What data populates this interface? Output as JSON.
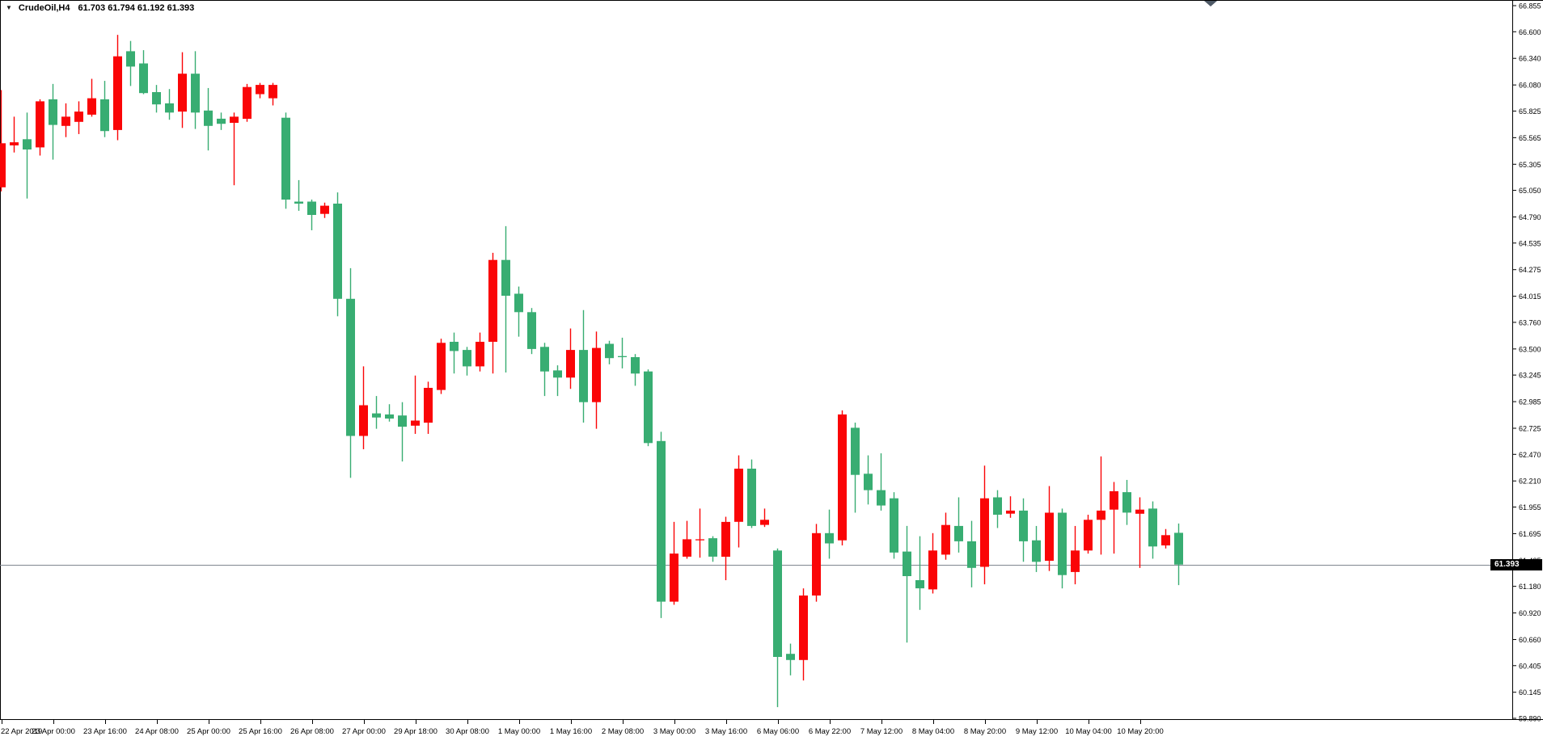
{
  "window": {
    "menu_triangle_glyph": "▼",
    "title_symbol": "CrudeOil,H4",
    "title_ohlc": "61.703 61.794 61.192 61.393"
  },
  "chart_data": {
    "type": "candlestick",
    "title": "CrudeOil,H4",
    "symbol": "CrudeOil",
    "timeframe": "H4",
    "legend_position": "none",
    "grid": false,
    "colors": {
      "bull": "#fa0507",
      "bear": "#38ad72",
      "price_line": "#7f8790",
      "axis": "#000000",
      "tag_bg": "#000000",
      "tag_text": "#ffffff"
    },
    "current_bar": {
      "open": 61.703,
      "high": 61.794,
      "low": 61.192,
      "close": 61.393
    },
    "price_line": 61.393,
    "price_tag_text": "61.393",
    "ylim": [
      59.89,
      66.855
    ],
    "price_axis": {
      "labels": [
        "66.855",
        "66.600",
        "66.340",
        "66.080",
        "65.825",
        "65.565",
        "65.305",
        "65.050",
        "64.790",
        "64.535",
        "64.275",
        "64.015",
        "63.760",
        "63.500",
        "63.245",
        "62.985",
        "62.725",
        "62.470",
        "62.210",
        "61.955",
        "61.695",
        "61.435",
        "61.180",
        "60.920",
        "60.660",
        "60.405",
        "60.145",
        "59.890"
      ]
    },
    "time_axis": {
      "labels": [
        "22 Apr 2019",
        "23 Apr 00:00",
        "23 Apr 16:00",
        "24 Apr 08:00",
        "25 Apr 00:00",
        "25 Apr 16:00",
        "26 Apr 08:00",
        "27 Apr 00:00",
        "29 Apr 18:00",
        "30 Apr 08:00",
        "1 May 00:00",
        "1 May 16:00",
        "2 May 08:00",
        "3 May 00:00",
        "3 May 16:00",
        "6 May 06:00",
        "6 May 22:00",
        "7 May 12:00",
        "8 May 04:00",
        "8 May 20:00",
        "9 May 12:00",
        "10 May 04:00",
        "10 May 20:00"
      ]
    },
    "candles_format": [
      "open",
      "high",
      "low",
      "close"
    ],
    "candles": [
      [
        65.08,
        66.03,
        65.04,
        65.51
      ],
      [
        65.49,
        65.77,
        65.42,
        65.52
      ],
      [
        65.55,
        65.81,
        64.97,
        65.45
      ],
      [
        65.47,
        65.94,
        65.39,
        65.92
      ],
      [
        65.94,
        66.09,
        65.35,
        65.69
      ],
      [
        65.68,
        65.9,
        65.57,
        65.77
      ],
      [
        65.72,
        65.92,
        65.6,
        65.82
      ],
      [
        65.79,
        66.14,
        65.77,
        65.95
      ],
      [
        65.94,
        66.12,
        65.57,
        65.63
      ],
      [
        65.64,
        66.57,
        65.54,
        66.36
      ],
      [
        66.41,
        66.51,
        66.07,
        66.26
      ],
      [
        66.29,
        66.42,
        65.99,
        66.0
      ],
      [
        66.01,
        66.08,
        65.81,
        65.89
      ],
      [
        65.9,
        66.04,
        65.74,
        65.81
      ],
      [
        65.82,
        66.4,
        65.66,
        66.19
      ],
      [
        66.19,
        66.41,
        65.65,
        65.81
      ],
      [
        65.83,
        66.05,
        65.44,
        65.68
      ],
      [
        65.75,
        65.81,
        65.64,
        65.7
      ],
      [
        65.71,
        65.81,
        65.1,
        65.77
      ],
      [
        65.75,
        66.09,
        65.72,
        66.06
      ],
      [
        65.99,
        66.1,
        65.95,
        66.08
      ],
      [
        65.95,
        66.1,
        65.88,
        66.08
      ],
      [
        65.76,
        65.81,
        64.87,
        64.96
      ],
      [
        64.94,
        65.15,
        64.85,
        64.92
      ],
      [
        64.94,
        64.96,
        64.66,
        64.81
      ],
      [
        64.82,
        64.93,
        64.78,
        64.9
      ],
      [
        64.92,
        65.03,
        63.82,
        63.99
      ],
      [
        63.99,
        64.29,
        62.24,
        62.65
      ],
      [
        62.65,
        63.33,
        62.52,
        62.95
      ],
      [
        62.87,
        63.04,
        62.72,
        62.83
      ],
      [
        62.86,
        62.96,
        62.79,
        62.82
      ],
      [
        62.85,
        62.98,
        62.4,
        62.74
      ],
      [
        62.75,
        63.24,
        62.67,
        62.8
      ],
      [
        62.78,
        63.18,
        62.67,
        63.12
      ],
      [
        63.1,
        63.6,
        63.06,
        63.56
      ],
      [
        63.57,
        63.66,
        63.26,
        63.48
      ],
      [
        63.49,
        63.52,
        63.24,
        63.33
      ],
      [
        63.33,
        63.66,
        63.28,
        63.57
      ],
      [
        63.57,
        64.44,
        63.26,
        64.37
      ],
      [
        64.37,
        64.7,
        63.27,
        64.02
      ],
      [
        64.04,
        64.11,
        63.62,
        63.86
      ],
      [
        63.86,
        63.9,
        63.45,
        63.5
      ],
      [
        63.52,
        63.56,
        63.04,
        63.28
      ],
      [
        63.29,
        63.34,
        63.04,
        63.22
      ],
      [
        63.22,
        63.7,
        63.11,
        63.49
      ],
      [
        63.49,
        63.88,
        62.78,
        62.98
      ],
      [
        62.98,
        63.67,
        62.72,
        63.51
      ],
      [
        63.55,
        63.58,
        63.35,
        63.41
      ],
      [
        63.43,
        63.61,
        63.31,
        63.42
      ],
      [
        63.42,
        63.45,
        63.14,
        63.26
      ],
      [
        63.28,
        63.3,
        62.55,
        62.58
      ],
      [
        62.6,
        62.69,
        60.87,
        61.03
      ],
      [
        61.03,
        61.81,
        61.0,
        61.5
      ],
      [
        61.47,
        61.82,
        61.45,
        61.64
      ],
      [
        61.63,
        61.94,
        61.46,
        61.64
      ],
      [
        61.65,
        61.67,
        61.42,
        61.47
      ],
      [
        61.47,
        61.86,
        61.24,
        61.81
      ],
      [
        61.81,
        62.46,
        61.56,
        62.33
      ],
      [
        62.33,
        62.42,
        61.75,
        61.77
      ],
      [
        61.78,
        61.94,
        61.76,
        61.83
      ],
      [
        61.53,
        61.55,
        60.0,
        60.49
      ],
      [
        60.52,
        60.62,
        60.31,
        60.46
      ],
      [
        60.46,
        61.16,
        60.26,
        61.09
      ],
      [
        61.09,
        61.79,
        61.03,
        61.7
      ],
      [
        61.7,
        61.93,
        61.45,
        61.6
      ],
      [
        61.63,
        62.9,
        61.58,
        62.86
      ],
      [
        62.73,
        62.78,
        61.9,
        62.27
      ],
      [
        62.28,
        62.46,
        61.98,
        62.12
      ],
      [
        62.12,
        62.48,
        61.92,
        61.97
      ],
      [
        62.04,
        62.1,
        61.45,
        61.51
      ],
      [
        61.52,
        61.77,
        60.63,
        61.28
      ],
      [
        61.24,
        61.67,
        60.95,
        61.16
      ],
      [
        61.15,
        61.7,
        61.11,
        61.53
      ],
      [
        61.49,
        61.9,
        61.44,
        61.78
      ],
      [
        61.77,
        62.05,
        61.51,
        61.62
      ],
      [
        61.62,
        61.82,
        61.17,
        61.36
      ],
      [
        61.37,
        62.36,
        61.2,
        62.04
      ],
      [
        62.05,
        62.12,
        61.75,
        61.88
      ],
      [
        61.89,
        62.06,
        61.85,
        61.92
      ],
      [
        61.92,
        62.04,
        61.42,
        61.62
      ],
      [
        61.63,
        61.77,
        61.32,
        61.42
      ],
      [
        61.43,
        62.16,
        61.33,
        61.9
      ],
      [
        61.9,
        61.94,
        61.16,
        61.29
      ],
      [
        61.32,
        61.77,
        61.2,
        61.53
      ],
      [
        61.53,
        61.88,
        61.5,
        61.83
      ],
      [
        61.83,
        62.45,
        61.49,
        61.92
      ],
      [
        61.93,
        62.2,
        61.5,
        62.11
      ],
      [
        62.1,
        62.22,
        61.78,
        61.9
      ],
      [
        61.89,
        62.05,
        61.36,
        61.93
      ],
      [
        61.94,
        62.01,
        61.45,
        61.57
      ],
      [
        61.58,
        61.74,
        61.55,
        61.68
      ],
      [
        61.703,
        61.794,
        61.192,
        61.393
      ]
    ]
  }
}
